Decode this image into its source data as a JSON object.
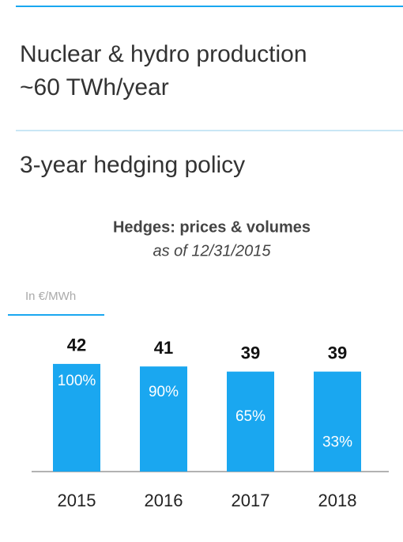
{
  "header": {
    "lines": [
      "Nuclear & hydro production",
      "~60 TWh/year"
    ],
    "policy": "3-year hedging policy"
  },
  "chart_data": {
    "type": "bar",
    "title": "Hedges: prices & volumes",
    "subtitle": "as of 12/31/2015",
    "unit_label": "In €/MWh",
    "categories": [
      "2015",
      "2016",
      "2017",
      "2018"
    ],
    "values": [
      42,
      41,
      39,
      39
    ],
    "color": "#1aa7f0",
    "ylim": [
      0,
      50
    ],
    "hedged_volumes": {
      "values": [
        100,
        90,
        65,
        33
      ],
      "value_labels": [
        "100%",
        "90%",
        "65%",
        "33%"
      ]
    }
  }
}
